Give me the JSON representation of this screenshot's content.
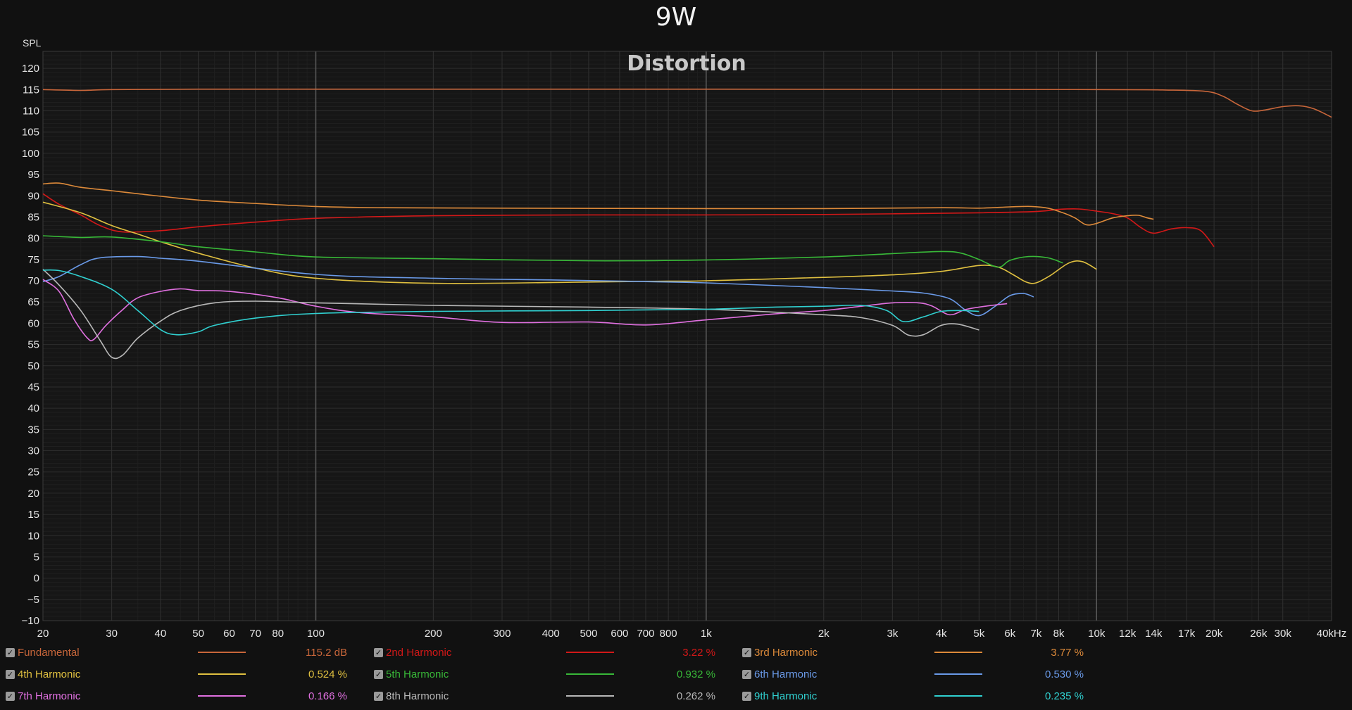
{
  "page_title": "9W",
  "chart_data": {
    "type": "line",
    "title": "Distortion",
    "ylabel": "SPL",
    "xlabel": "",
    "x_scale": "log",
    "xlim": [
      20,
      40000
    ],
    "ylim": [
      -10,
      124
    ],
    "grid": true,
    "y_ticks": [
      120,
      115,
      110,
      105,
      100,
      95,
      90,
      85,
      80,
      75,
      70,
      65,
      60,
      55,
      50,
      45,
      40,
      35,
      30,
      25,
      20,
      15,
      10,
      5,
      0,
      -5,
      -10
    ],
    "x_ticks": [
      {
        "v": 20,
        "label": "20"
      },
      {
        "v": 30,
        "label": "30"
      },
      {
        "v": 40,
        "label": "40"
      },
      {
        "v": 50,
        "label": "50"
      },
      {
        "v": 60,
        "label": "60"
      },
      {
        "v": 70,
        "label": "70"
      },
      {
        "v": 80,
        "label": "80"
      },
      {
        "v": 100,
        "label": "100"
      },
      {
        "v": 200,
        "label": "200"
      },
      {
        "v": 300,
        "label": "300"
      },
      {
        "v": 400,
        "label": "400"
      },
      {
        "v": 500,
        "label": "500"
      },
      {
        "v": 600,
        "label": "600"
      },
      {
        "v": 700,
        "label": "700"
      },
      {
        "v": 800,
        "label": "800"
      },
      {
        "v": 1000,
        "label": "1k"
      },
      {
        "v": 2000,
        "label": "2k"
      },
      {
        "v": 3000,
        "label": "3k"
      },
      {
        "v": 4000,
        "label": "4k"
      },
      {
        "v": 5000,
        "label": "5k"
      },
      {
        "v": 6000,
        "label": "6k"
      },
      {
        "v": 7000,
        "label": "7k"
      },
      {
        "v": 8000,
        "label": "8k"
      },
      {
        "v": 10000,
        "label": "10k"
      },
      {
        "v": 12000,
        "label": "12k"
      },
      {
        "v": 14000,
        "label": "14k"
      },
      {
        "v": 17000,
        "label": "17k"
      },
      {
        "v": 20000,
        "label": "20k"
      },
      {
        "v": 26000,
        "label": "26k"
      },
      {
        "v": 30000,
        "label": "30k"
      },
      {
        "v": 40000,
        "label": "40kHz"
      }
    ],
    "series": [
      {
        "name": "Fundamental",
        "color": "#c8663a",
        "value": "115.2 dB",
        "points": [
          [
            20,
            115
          ],
          [
            25,
            114.8
          ],
          [
            30,
            115
          ],
          [
            50,
            115.1
          ],
          [
            100,
            115.1
          ],
          [
            1000,
            115.1
          ],
          [
            10000,
            115
          ],
          [
            15000,
            114.9
          ],
          [
            19000,
            114.6
          ],
          [
            21000,
            113.5
          ],
          [
            23000,
            111.5
          ],
          [
            25000,
            110
          ],
          [
            27000,
            110.2
          ],
          [
            30000,
            111
          ],
          [
            33000,
            111.2
          ],
          [
            36000,
            110.5
          ],
          [
            40000,
            108.5
          ]
        ]
      },
      {
        "name": "2nd Harmonic",
        "color": "#d21818",
        "value": "3.22 %",
        "points": [
          [
            20,
            90.5
          ],
          [
            22,
            88
          ],
          [
            25,
            85.5
          ],
          [
            28,
            83
          ],
          [
            32,
            81.5
          ],
          [
            40,
            81.8
          ],
          [
            50,
            82.7
          ],
          [
            70,
            83.8
          ],
          [
            100,
            84.7
          ],
          [
            200,
            85.3
          ],
          [
            500,
            85.5
          ],
          [
            1000,
            85.5
          ],
          [
            2000,
            85.6
          ],
          [
            5000,
            86
          ],
          [
            7000,
            86.3
          ],
          [
            8000,
            86.8
          ],
          [
            9000,
            86.9
          ],
          [
            10000,
            86.4
          ],
          [
            11000,
            85.8
          ],
          [
            12000,
            84.8
          ],
          [
            13000,
            82.5
          ],
          [
            14000,
            81.2
          ],
          [
            15500,
            82.2
          ],
          [
            17000,
            82.5
          ],
          [
            18500,
            81.8
          ],
          [
            20000,
            78
          ]
        ]
      },
      {
        "name": "3rd Harmonic",
        "color": "#dd8a3a",
        "value": "3.77 %",
        "points": [
          [
            20,
            92.8
          ],
          [
            22,
            93
          ],
          [
            25,
            92
          ],
          [
            30,
            91.2
          ],
          [
            35,
            90.5
          ],
          [
            50,
            89
          ],
          [
            70,
            88.2
          ],
          [
            100,
            87.5
          ],
          [
            150,
            87.2
          ],
          [
            300,
            87.1
          ],
          [
            1000,
            87
          ],
          [
            2000,
            87
          ],
          [
            4000,
            87.2
          ],
          [
            5000,
            87.1
          ],
          [
            6000,
            87.4
          ],
          [
            6800,
            87.5
          ],
          [
            7500,
            87.1
          ],
          [
            8200,
            86
          ],
          [
            8800,
            84.8
          ],
          [
            9400,
            83.2
          ],
          [
            10000,
            83.5
          ],
          [
            11000,
            84.8
          ],
          [
            12000,
            85.3
          ],
          [
            12800,
            85.4
          ],
          [
            13500,
            84.8
          ],
          [
            14000,
            84.5
          ]
        ]
      },
      {
        "name": "4th Harmonic",
        "color": "#e0c040",
        "value": "0.524 %",
        "points": [
          [
            20,
            88.5
          ],
          [
            25,
            86
          ],
          [
            30,
            83
          ],
          [
            35,
            81
          ],
          [
            40,
            79.2
          ],
          [
            50,
            76.5
          ],
          [
            70,
            73
          ],
          [
            100,
            70.6
          ],
          [
            200,
            69.4
          ],
          [
            500,
            69.7
          ],
          [
            800,
            69.9
          ],
          [
            1000,
            70
          ],
          [
            2000,
            70.8
          ],
          [
            3000,
            71.4
          ],
          [
            4000,
            72.2
          ],
          [
            5000,
            73.6
          ],
          [
            5600,
            73.2
          ],
          [
            6100,
            71.5
          ],
          [
            6600,
            69.7
          ],
          [
            7000,
            69.5
          ],
          [
            7600,
            71.2
          ],
          [
            8500,
            74.2
          ],
          [
            9200,
            74.5
          ],
          [
            10000,
            72.7
          ]
        ]
      },
      {
        "name": "5th Harmonic",
        "color": "#38b838",
        "value": "0.932 %",
        "points": [
          [
            20,
            80.6
          ],
          [
            25,
            80.2
          ],
          [
            30,
            80.3
          ],
          [
            40,
            79.2
          ],
          [
            50,
            78
          ],
          [
            70,
            76.8
          ],
          [
            100,
            75.6
          ],
          [
            200,
            75.2
          ],
          [
            500,
            74.7
          ],
          [
            1000,
            74.9
          ],
          [
            2000,
            75.6
          ],
          [
            3000,
            76.4
          ],
          [
            4000,
            76.9
          ],
          [
            4500,
            76.5
          ],
          [
            5000,
            75
          ],
          [
            5600,
            73.2
          ],
          [
            6000,
            74.8
          ],
          [
            6700,
            75.7
          ],
          [
            7500,
            75.4
          ],
          [
            8200,
            74.2
          ]
        ]
      },
      {
        "name": "6th Harmonic",
        "color": "#6a9ae8",
        "value": "0.530 %",
        "points": [
          [
            20,
            69.8
          ],
          [
            22,
            71
          ],
          [
            25,
            73.8
          ],
          [
            28,
            75.4
          ],
          [
            35,
            75.7
          ],
          [
            40,
            75.3
          ],
          [
            50,
            74.6
          ],
          [
            100,
            71.5
          ],
          [
            200,
            70.6
          ],
          [
            400,
            70.2
          ],
          [
            700,
            69.8
          ],
          [
            1000,
            69.5
          ],
          [
            2000,
            68.4
          ],
          [
            3000,
            67.6
          ],
          [
            3600,
            67.1
          ],
          [
            4200,
            65.8
          ],
          [
            4600,
            63.2
          ],
          [
            5000,
            61.8
          ],
          [
            5500,
            64
          ],
          [
            6000,
            66.5
          ],
          [
            6500,
            67
          ],
          [
            6900,
            66.2
          ]
        ]
      },
      {
        "name": "7th Harmonic",
        "color": "#e070e0",
        "value": "0.166 %",
        "points": [
          [
            20,
            70.3
          ],
          [
            22,
            67.5
          ],
          [
            24,
            61
          ],
          [
            26,
            56.5
          ],
          [
            27,
            56.2
          ],
          [
            29,
            59.5
          ],
          [
            32,
            63.2
          ],
          [
            35,
            66
          ],
          [
            40,
            67.5
          ],
          [
            45,
            68.1
          ],
          [
            50,
            67.7
          ],
          [
            60,
            67.5
          ],
          [
            80,
            66
          ],
          [
            100,
            64
          ],
          [
            130,
            62.5
          ],
          [
            200,
            61.5
          ],
          [
            300,
            60.2
          ],
          [
            500,
            60.3
          ],
          [
            700,
            59.6
          ],
          [
            1000,
            60.8
          ],
          [
            1500,
            62.2
          ],
          [
            2000,
            63
          ],
          [
            2500,
            64
          ],
          [
            3000,
            64.8
          ],
          [
            3500,
            64.8
          ],
          [
            3800,
            64
          ],
          [
            4200,
            62
          ],
          [
            4600,
            63.2
          ],
          [
            5000,
            63.8
          ],
          [
            5500,
            64.3
          ],
          [
            5900,
            64.6
          ]
        ]
      },
      {
        "name": "8th Harmonic",
        "color": "#b8b8b8",
        "value": "0.262 %",
        "points": [
          [
            20,
            72.7
          ],
          [
            22,
            69
          ],
          [
            25,
            63
          ],
          [
            28,
            56
          ],
          [
            30,
            52
          ],
          [
            32,
            52.5
          ],
          [
            35,
            56.5
          ],
          [
            40,
            60.5
          ],
          [
            45,
            63
          ],
          [
            55,
            64.8
          ],
          [
            70,
            65.2
          ],
          [
            100,
            64.8
          ],
          [
            200,
            64.2
          ],
          [
            500,
            63.8
          ],
          [
            1000,
            63.3
          ],
          [
            2000,
            62
          ],
          [
            2500,
            61.3
          ],
          [
            3000,
            59.5
          ],
          [
            3300,
            57.2
          ],
          [
            3600,
            57.3
          ],
          [
            4000,
            59.5
          ],
          [
            4400,
            59.8
          ],
          [
            5000,
            58.4
          ]
        ]
      },
      {
        "name": "9th Harmonic",
        "color": "#30d0d0",
        "value": "0.235 %",
        "points": [
          [
            20,
            72.5
          ],
          [
            22,
            72.4
          ],
          [
            25,
            71
          ],
          [
            30,
            68
          ],
          [
            35,
            63
          ],
          [
            40,
            58.5
          ],
          [
            44,
            57.3
          ],
          [
            50,
            58
          ],
          [
            55,
            59.5
          ],
          [
            70,
            61.2
          ],
          [
            100,
            62.3
          ],
          [
            200,
            62.8
          ],
          [
            500,
            63
          ],
          [
            1000,
            63.3
          ],
          [
            1500,
            63.8
          ],
          [
            2000,
            64
          ],
          [
            2500,
            64.2
          ],
          [
            2900,
            63
          ],
          [
            3200,
            60.4
          ],
          [
            3600,
            61.5
          ],
          [
            4000,
            62.8
          ],
          [
            4500,
            63
          ],
          [
            5000,
            62.8
          ]
        ]
      }
    ]
  },
  "legend_rows": [
    [
      {
        "idx": 0
      },
      {
        "idx": 1
      },
      {
        "idx": 2
      }
    ],
    [
      {
        "idx": 3
      },
      {
        "idx": 4
      },
      {
        "idx": 5
      }
    ],
    [
      {
        "idx": 6
      },
      {
        "idx": 7
      },
      {
        "idx": 8
      }
    ]
  ]
}
